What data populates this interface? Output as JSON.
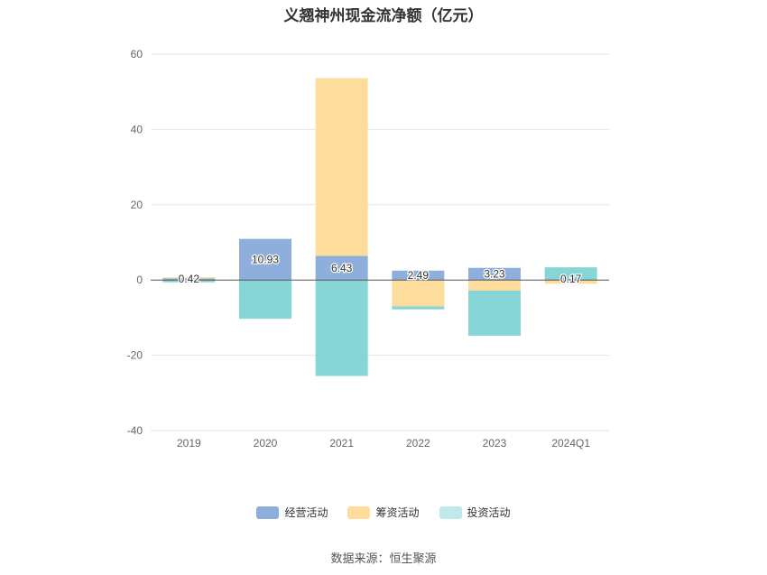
{
  "chart_data": {
    "type": "bar",
    "title": "义翘神州现金流净额（亿元）",
    "categories": [
      "2019",
      "2020",
      "2021",
      "2022",
      "2023",
      "2024Q1"
    ],
    "ylim": [
      -40,
      60
    ],
    "yticks": [
      60,
      40,
      20,
      0,
      -20,
      -40
    ],
    "grid": true,
    "stacked": true,
    "legend_position": "bottom",
    "series": [
      {
        "name": "经营活动",
        "color": "#8eaedc",
        "values": [
          0.42,
          10.93,
          6.43,
          2.49,
          3.23,
          0.17
        ]
      },
      {
        "name": "筹资活动",
        "color": "#fedc9c",
        "values": [
          0.3,
          0,
          47.2,
          -7.0,
          -2.8,
          -1.0
        ]
      },
      {
        "name": "投资活动",
        "color": "#86d6d8",
        "values": [
          -0.6,
          -10.3,
          -25.5,
          -0.8,
          -12.0,
          3.2
        ]
      }
    ],
    "data_labels": [
      "0.42",
      "10.93",
      "6.43",
      "2.49",
      "3.23",
      "0.17"
    ],
    "source": "数据来源：恒生聚源"
  }
}
